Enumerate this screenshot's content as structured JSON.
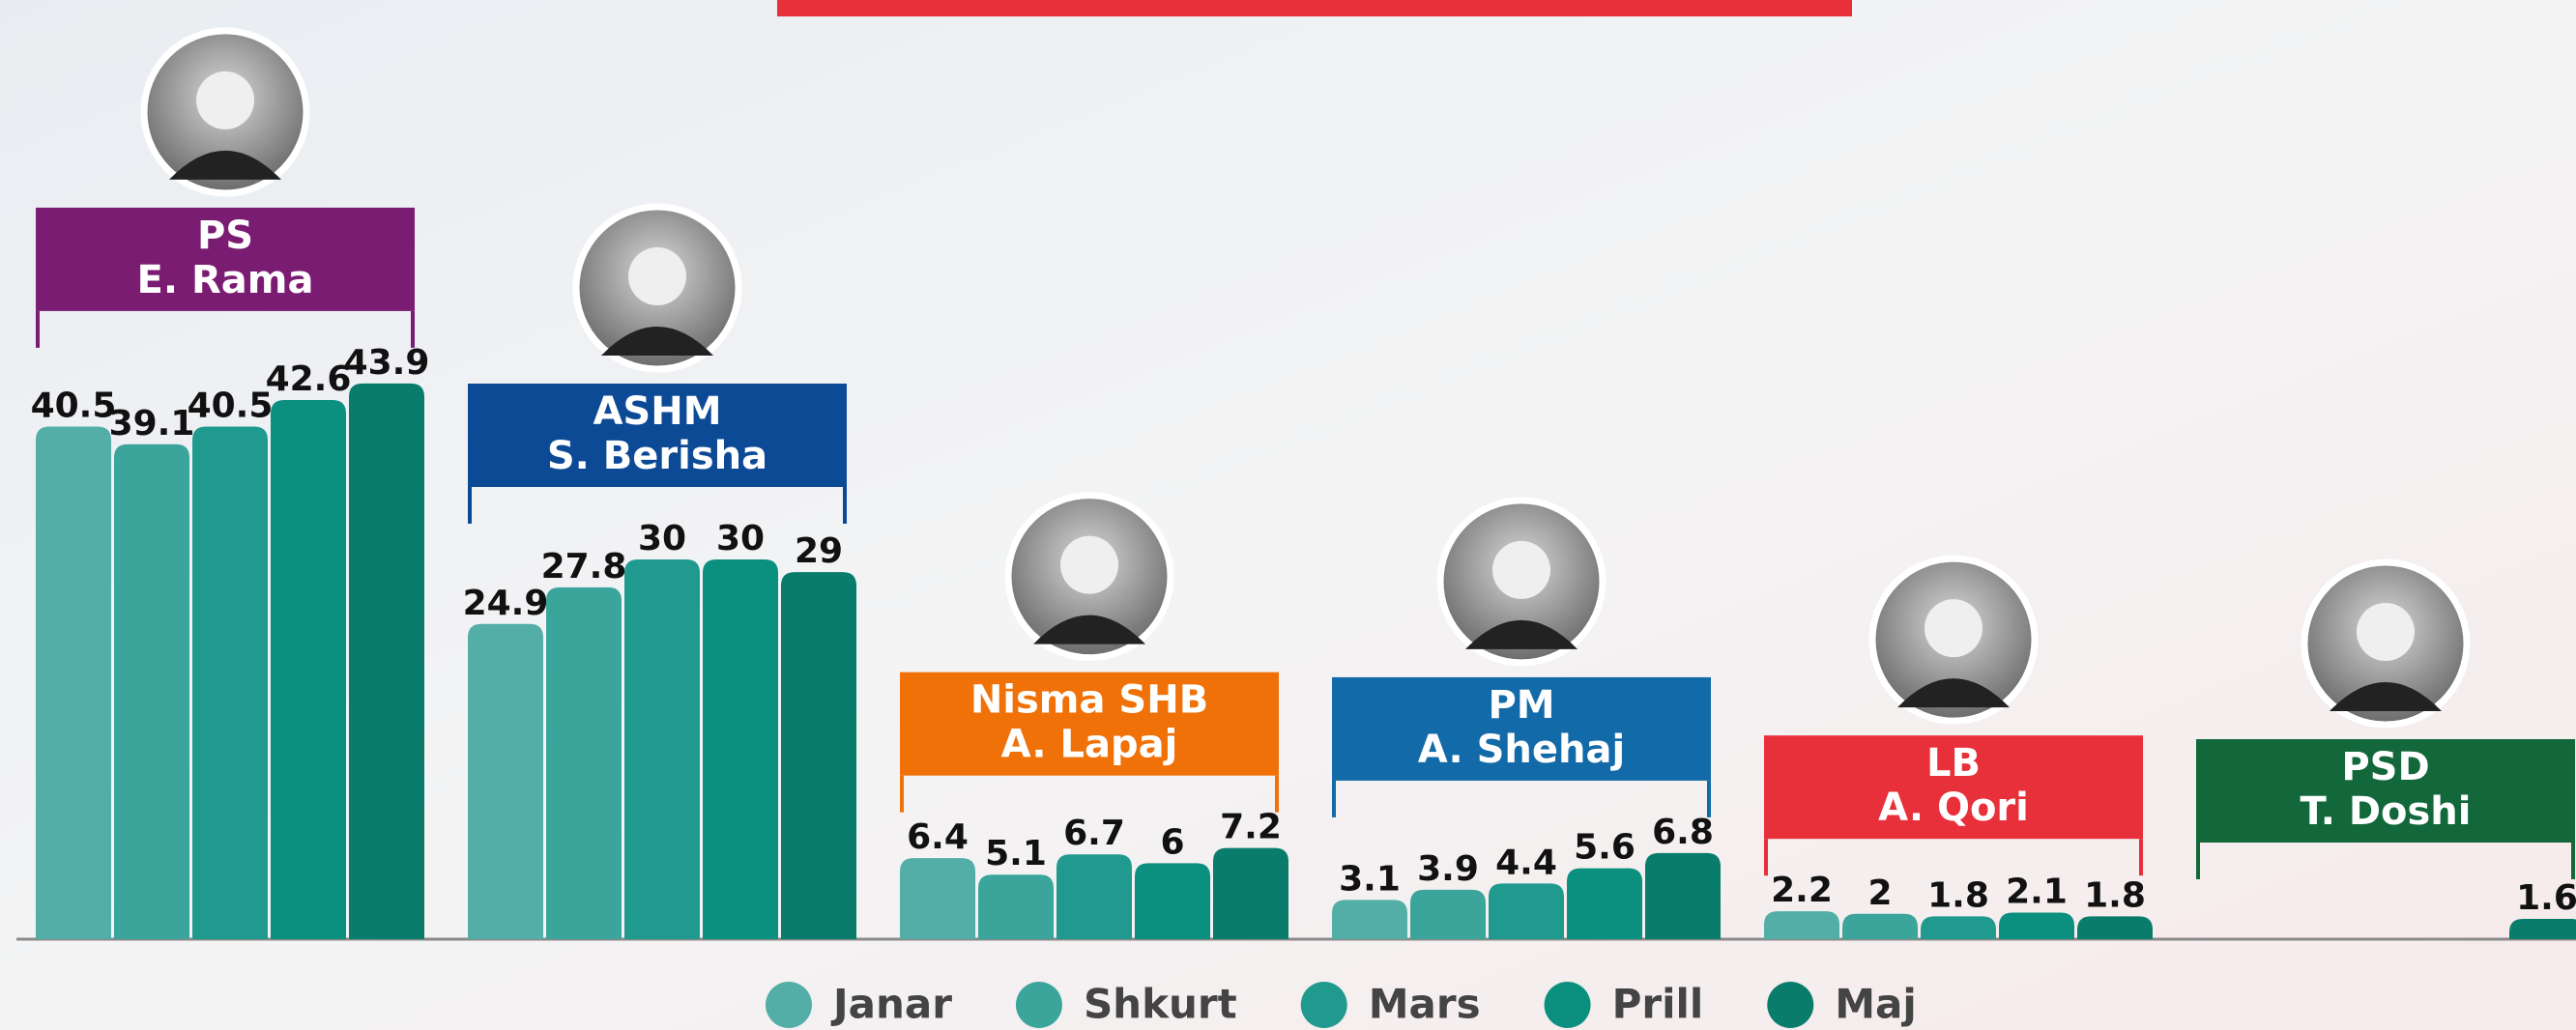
{
  "chart_data": {
    "type": "bar",
    "categories": [
      "PS",
      "ASHM",
      "Nisma SHB",
      "PM",
      "LB",
      "PSD"
    ],
    "leaders": [
      "E. Rama",
      "S. Berisha",
      "A. Lapaj",
      "A. Shehaj",
      "A. Qori",
      "T. Doshi"
    ],
    "category_colors": [
      "#7b1c73",
      "#0d4a96",
      "#f07108",
      "#136aa8",
      "#e8303a",
      "#12683a"
    ],
    "series": [
      {
        "name": "Janar",
        "color": "#52aea7",
        "values": [
          40.5,
          24.9,
          6.4,
          3.1,
          2.2,
          null
        ]
      },
      {
        "name": "Shkurt",
        "color": "#3ba59c",
        "values": [
          39.1,
          27.8,
          5.1,
          3.9,
          2,
          null
        ]
      },
      {
        "name": "Mars",
        "color": "#209a8f",
        "values": [
          40.5,
          30,
          6.7,
          4.4,
          1.8,
          null
        ]
      },
      {
        "name": "Prill",
        "color": "#0b8f7f",
        "values": [
          42.6,
          30,
          6,
          5.6,
          2.1,
          null
        ]
      },
      {
        "name": "Maj",
        "color": "#0a7c6c",
        "values": [
          43.9,
          29,
          7.2,
          6.8,
          1.8,
          1.6
        ]
      }
    ]
  }
}
